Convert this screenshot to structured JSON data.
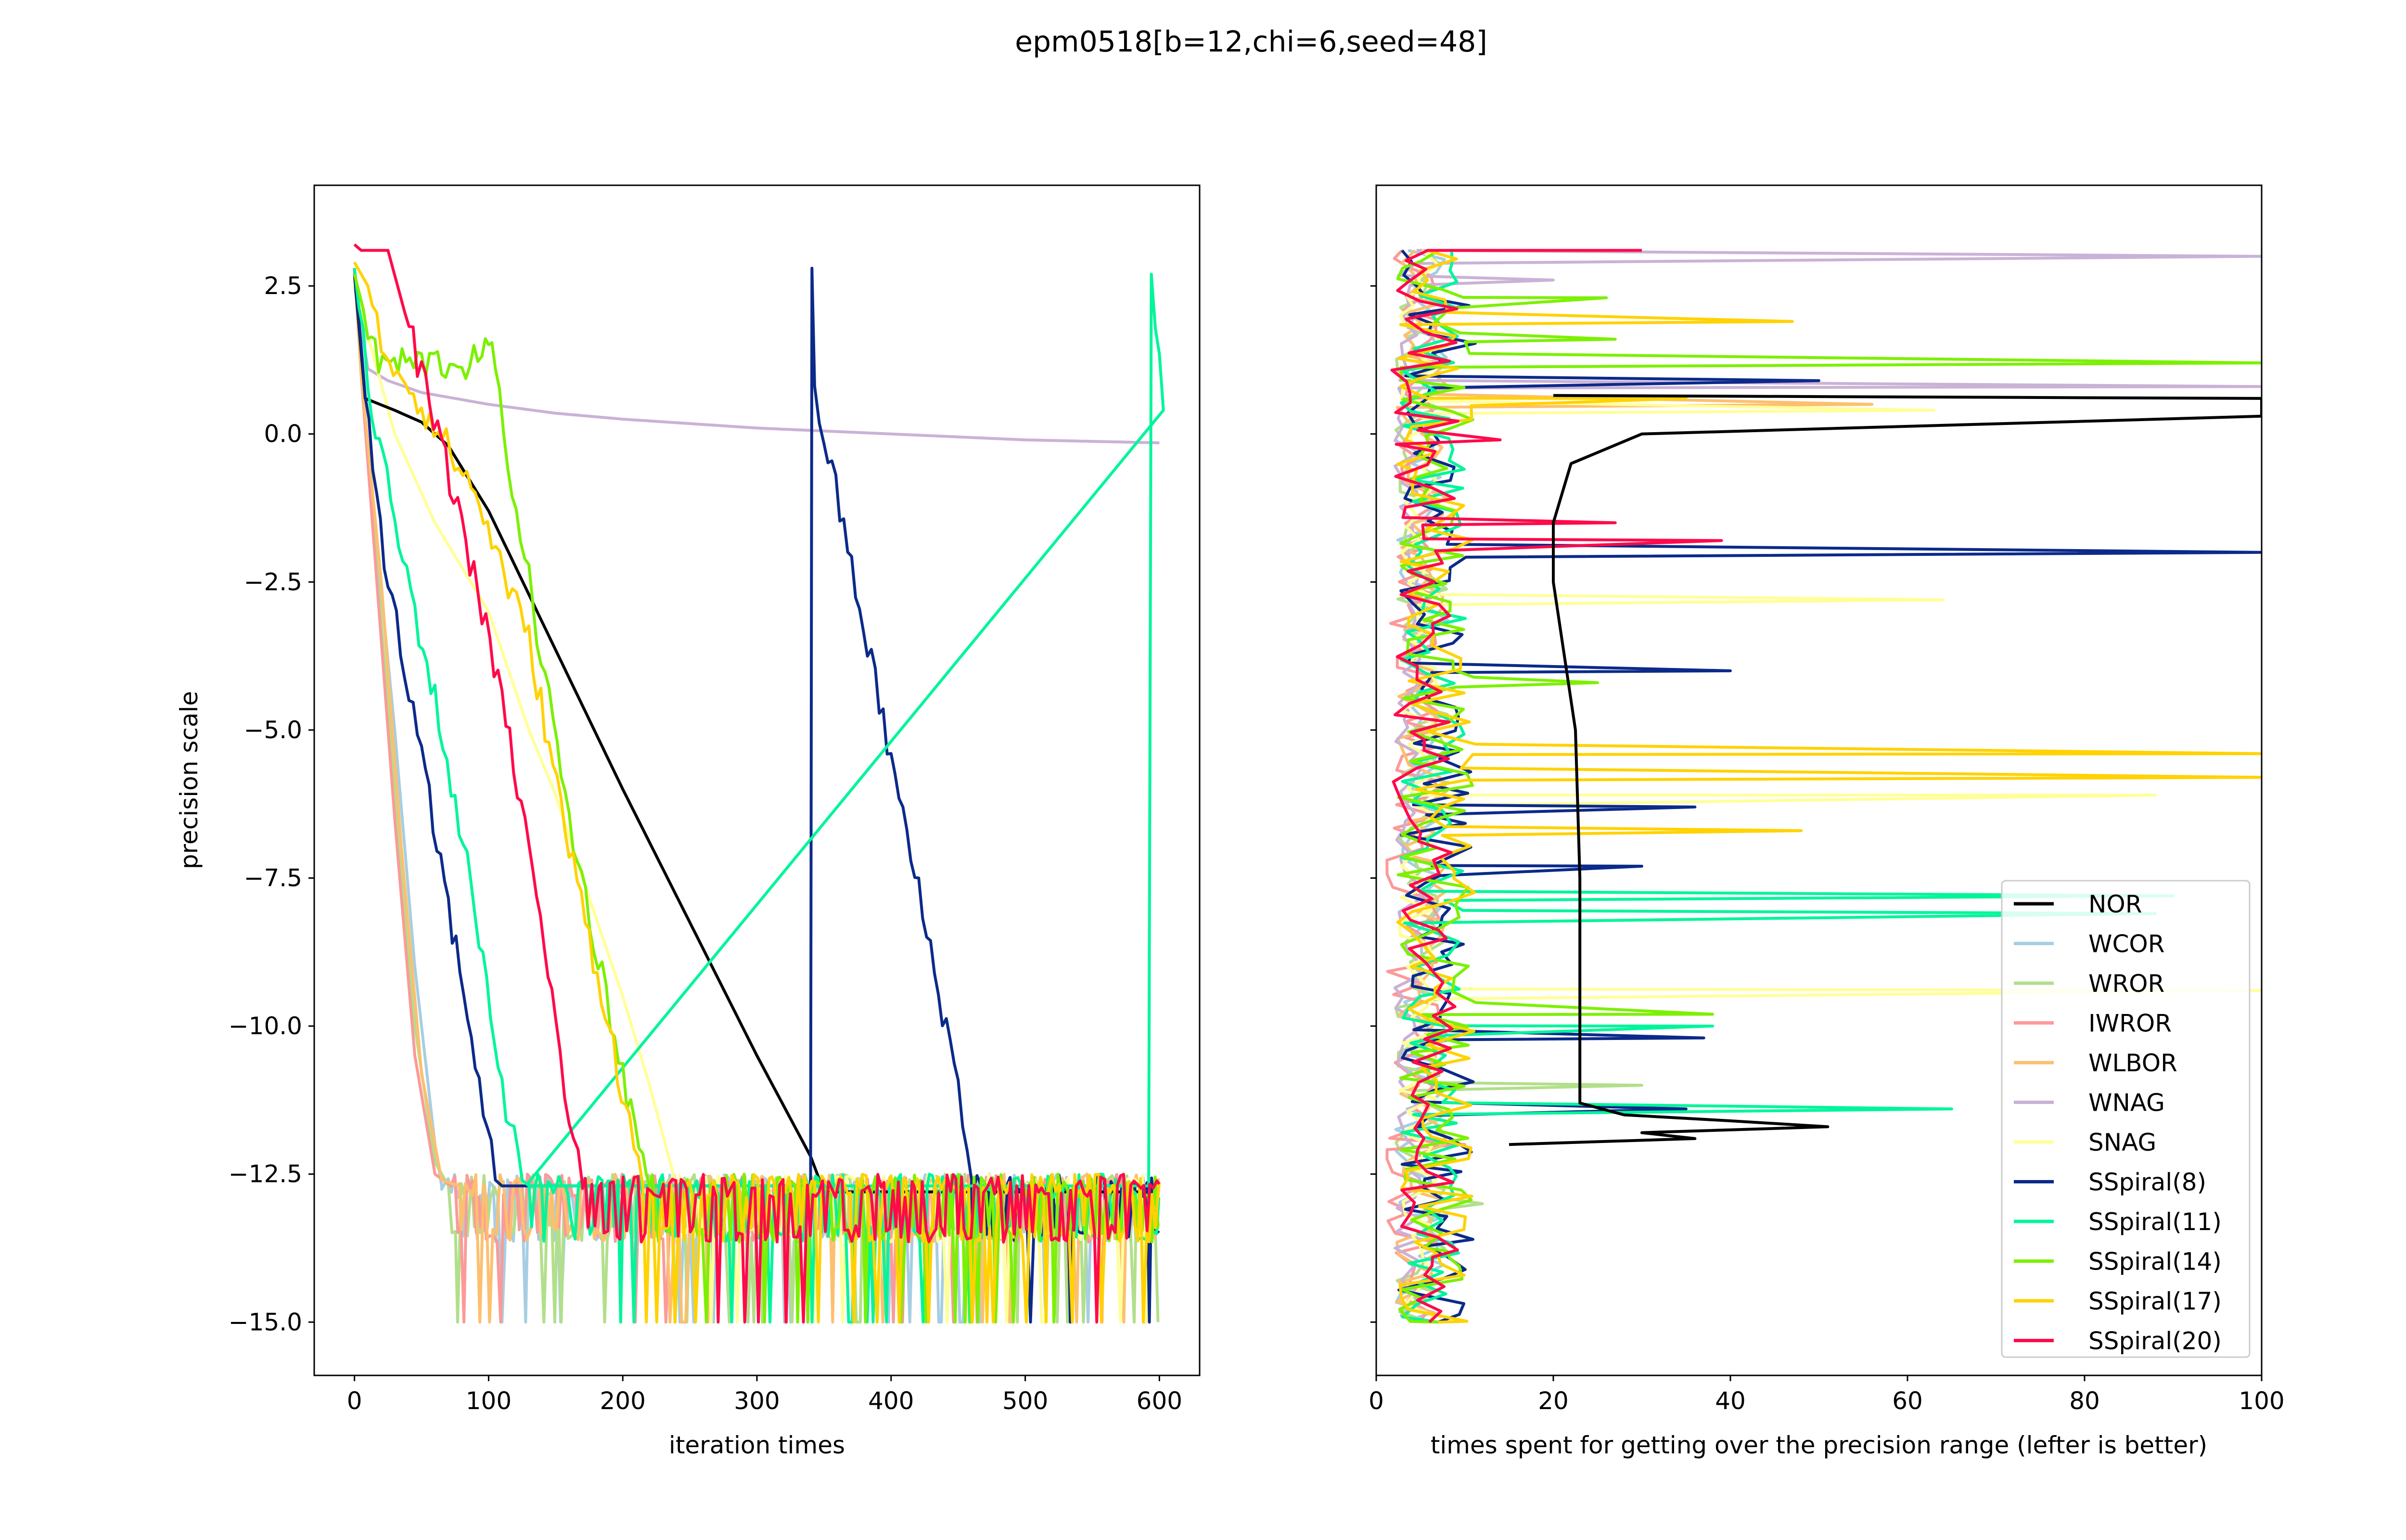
{
  "figure": {
    "title": "epm0518[b=12,chi=6,seed=48]"
  },
  "colors": {
    "NOR": "#000000",
    "WCOR": "#a6cee3",
    "WROR": "#b2df8a",
    "IWROR": "#fb9a99",
    "WLBOR": "#fdbf6f",
    "WNAG": "#cab2d6",
    "SNAG": "#ffff99",
    "SSpiral(8)": "#0b2a8a",
    "SSpiral(11)": "#00f59b",
    "SSpiral(14)": "#7cf000",
    "SSpiral(17)": "#ffd200",
    "SSpiral(20)": "#ff0a4a"
  },
  "chart_data": [
    {
      "type": "line",
      "title": "",
      "xlabel": "iteration times",
      "ylabel": "precision scale",
      "xlim": [
        -30,
        630
      ],
      "ylim": [
        -15.9,
        4.2
      ],
      "xticks": [
        0,
        100,
        200,
        300,
        400,
        500,
        600
      ],
      "yticks": [
        2.5,
        0.0,
        -2.5,
        -5.0,
        -7.5,
        -10.0,
        -12.5,
        -15.0
      ],
      "ytick_labels": [
        "2.5",
        "0.0",
        "−2.5",
        "−5.0",
        "−7.5",
        "−10.0",
        "−12.5",
        "−15.0"
      ],
      "floor_noise": {
        "upper": -12.5,
        "mid": -13.5,
        "lower": -15.0
      },
      "series": [
        {
          "name": "WCOR",
          "x": [
            0,
            5,
            15,
            30,
            45,
            60,
            65
          ],
          "y": [
            2.8,
            1.0,
            -1.5,
            -5.0,
            -9.0,
            -12.0,
            -12.7
          ],
          "noise_start": 65
        },
        {
          "name": "WROR",
          "x": [
            0,
            5,
            15,
            30,
            45,
            60,
            70
          ],
          "y": [
            2.8,
            1.0,
            -1.8,
            -6.0,
            -10.0,
            -12.3,
            -12.7
          ],
          "noise_start": 70
        },
        {
          "name": "IWROR",
          "x": [
            0,
            5,
            15,
            30,
            45,
            60,
            72
          ],
          "y": [
            2.8,
            1.0,
            -2.0,
            -6.5,
            -10.5,
            -12.5,
            -12.7
          ],
          "noise_start": 72
        },
        {
          "name": "WLBOR",
          "x": [
            0,
            5,
            20,
            35,
            50,
            65,
            78
          ],
          "y": [
            2.8,
            1.0,
            -2.5,
            -7.0,
            -10.8,
            -12.6,
            -12.7
          ],
          "noise_start": 78
        },
        {
          "name": "WNAG",
          "x": [
            0,
            10,
            25,
            50,
            100,
            150,
            200,
            300,
            400,
            500,
            600
          ],
          "y": [
            2.5,
            1.1,
            0.9,
            0.7,
            0.5,
            0.35,
            0.25,
            0.1,
            0.0,
            -0.1,
            -0.15
          ]
        },
        {
          "name": "SNAG",
          "x": [
            0,
            30,
            60,
            100,
            130,
            150,
            170,
            200,
            220,
            240
          ],
          "y": [
            2.5,
            0.0,
            -1.5,
            -3.0,
            -5.0,
            -6.1,
            -7.5,
            -9.5,
            -11.0,
            -12.7
          ],
          "noise_start": 240
        },
        {
          "name": "NOR",
          "x": [
            0,
            8,
            30,
            50,
            70,
            100,
            200,
            300,
            340,
            350,
            600
          ],
          "y": [
            2.7,
            0.6,
            0.4,
            0.2,
            -0.2,
            -1.3,
            -6.0,
            -10.5,
            -12.2,
            -12.8,
            -12.8
          ]
        },
        {
          "name": "SSpiral(8)",
          "x": [
            0,
            8,
            25,
            50,
            70,
            90,
            105,
            110,
            338,
            340,
            341,
            343,
            350,
            400,
            450,
            460
          ],
          "y": [
            2.8,
            0.6,
            -2.5,
            -5.5,
            -8.0,
            -10.5,
            -12.6,
            -12.7,
            -12.7,
            -12.7,
            2.8,
            0.7,
            0.0,
            -5.5,
            -11.0,
            -12.6
          ],
          "noise_start": 460
        },
        {
          "name": "SSpiral(11)",
          "x": [
            0,
            10,
            30,
            60,
            90,
            110,
            125,
            130,
            592,
            594,
            600,
            603
          ],
          "y": [
            2.8,
            0.8,
            -1.5,
            -4.5,
            -8.0,
            -11.0,
            -12.6,
            -12.7,
            -12.7,
            2.7,
            1.2,
            0.4
          ],
          "noise_start": 130
        },
        {
          "name": "SSpiral(14)",
          "x": [
            0,
            10,
            18,
            50,
            95,
            100,
            105,
            130,
            160,
            200,
            215,
            220
          ],
          "y": [
            2.7,
            1.8,
            1.2,
            1.2,
            1.2,
            1.7,
            0.9,
            -2.5,
            -6.5,
            -10.8,
            -12.3,
            -12.7
          ],
          "noise_start": 220
        },
        {
          "name": "SSpiral(17)",
          "x": [
            0,
            10,
            20,
            50,
            90,
            130,
            160,
            190,
            205,
            215
          ],
          "y": [
            2.9,
            2.5,
            1.5,
            0.5,
            -1.0,
            -3.5,
            -7.0,
            -10.0,
            -11.7,
            -12.7
          ],
          "noise_start": 215
        },
        {
          "name": "SSpiral(20)",
          "x": [
            0,
            5,
            25,
            50,
            80,
            110,
            130,
            150,
            160,
            170
          ],
          "y": [
            3.2,
            3.1,
            3.1,
            1.0,
            -1.5,
            -4.5,
            -7.0,
            -10.0,
            -11.5,
            -12.7
          ],
          "noise_start": 170
        }
      ]
    },
    {
      "type": "line",
      "title": "",
      "xlabel": "times spent for getting over the precision range (lefter is better)",
      "ylabel": "",
      "xlim": [
        0,
        100
      ],
      "ylim": [
        -15.9,
        4.2
      ],
      "xticks": [
        0,
        20,
        40,
        60,
        80,
        100
      ],
      "yticks": [
        2.5,
        0.0,
        -2.5,
        -5.0,
        -7.5,
        -10.0,
        -12.5,
        -15.0
      ],
      "legend": {
        "location": "lower right",
        "entries": [
          "NOR",
          "WCOR",
          "WROR",
          "IWROR",
          "WLBOR",
          "WNAG",
          "SNAG",
          "SSpiral(8)",
          "SSpiral(11)",
          "SSpiral(14)",
          "SSpiral(17)",
          "SSpiral(20)"
        ]
      },
      "series": [
        {
          "name": "WCOR",
          "base": 4,
          "spread": 4,
          "spikes": [
            [
              -13.2,
              8
            ]
          ]
        },
        {
          "name": "WROR",
          "base": 4,
          "spread": 4,
          "spikes": [
            [
              -11.0,
              30
            ],
            [
              -13.0,
              12
            ]
          ]
        },
        {
          "name": "IWROR",
          "base": 3,
          "spread": 4,
          "spikes": [
            [
              -12.0,
              10
            ]
          ]
        },
        {
          "name": "WLBOR",
          "base": 4,
          "spread": 4,
          "spikes": [
            [
              0.5,
              56
            ]
          ]
        },
        {
          "name": "WNAG",
          "base": 3,
          "spread": 2,
          "spikes": [
            [
              3.0,
              100
            ],
            [
              0.8,
              100
            ],
            [
              2.6,
              20
            ]
          ]
        },
        {
          "name": "SNAG",
          "base": 4,
          "spread": 3,
          "spikes": [
            [
              -2.8,
              64
            ],
            [
              -6.1,
              88
            ],
            [
              -9.4,
              100
            ],
            [
              0.4,
              63
            ]
          ]
        },
        {
          "name": "SSpiral(8)",
          "base": 5,
          "spread": 6,
          "spikes": [
            [
              -2.0,
              100
            ],
            [
              -4.0,
              40
            ],
            [
              -6.3,
              36
            ],
            [
              -7.3,
              30
            ],
            [
              -10.2,
              37
            ],
            [
              -11.4,
              35
            ],
            [
              0.9,
              50
            ]
          ]
        },
        {
          "name": "SSpiral(11)",
          "base": 5,
          "spread": 5,
          "spikes": [
            [
              -7.8,
              90
            ],
            [
              -11.4,
              65
            ],
            [
              -10.0,
              38
            ],
            [
              -8.1,
              88
            ]
          ]
        },
        {
          "name": "SSpiral(14)",
          "base": 5,
          "spread": 6,
          "spikes": [
            [
              1.2,
              100
            ],
            [
              2.3,
              26
            ],
            [
              1.6,
              27
            ],
            [
              -4.2,
              25
            ],
            [
              -9.8,
              38
            ],
            [
              -13.8,
              8
            ]
          ]
        },
        {
          "name": "SSpiral(17)",
          "base": 5,
          "spread": 6,
          "spikes": [
            [
              1.9,
              47
            ],
            [
              0.6,
              35
            ],
            [
              -5.4,
              100
            ],
            [
              -5.8,
              100
            ],
            [
              -6.7,
              48
            ]
          ]
        },
        {
          "name": "SSpiral(20)",
          "base": 4,
          "spread": 5,
          "spikes": [
            [
              3.1,
              30
            ],
            [
              -1.8,
              39
            ],
            [
              -1.5,
              27
            ],
            [
              -0.1,
              14
            ]
          ]
        },
        {
          "name": "NOR",
          "curve": [
            [
              0.3,
              100
            ],
            [
              0.0,
              30
            ],
            [
              -0.5,
              22
            ],
            [
              -1.5,
              20
            ],
            [
              -2.5,
              20
            ],
            [
              -3.5,
              21
            ],
            [
              -5.0,
              22.5
            ],
            [
              -7.5,
              23
            ],
            [
              -10.0,
              23
            ],
            [
              -11.3,
              23
            ],
            [
              -11.5,
              28
            ],
            [
              -11.6,
              40
            ],
            [
              -11.7,
              51
            ],
            [
              -11.8,
              30
            ],
            [
              -11.9,
              36
            ],
            [
              -12.0,
              15
            ]
          ],
          "spikes": [
            [
              0.6,
              100
            ]
          ]
        }
      ]
    }
  ]
}
